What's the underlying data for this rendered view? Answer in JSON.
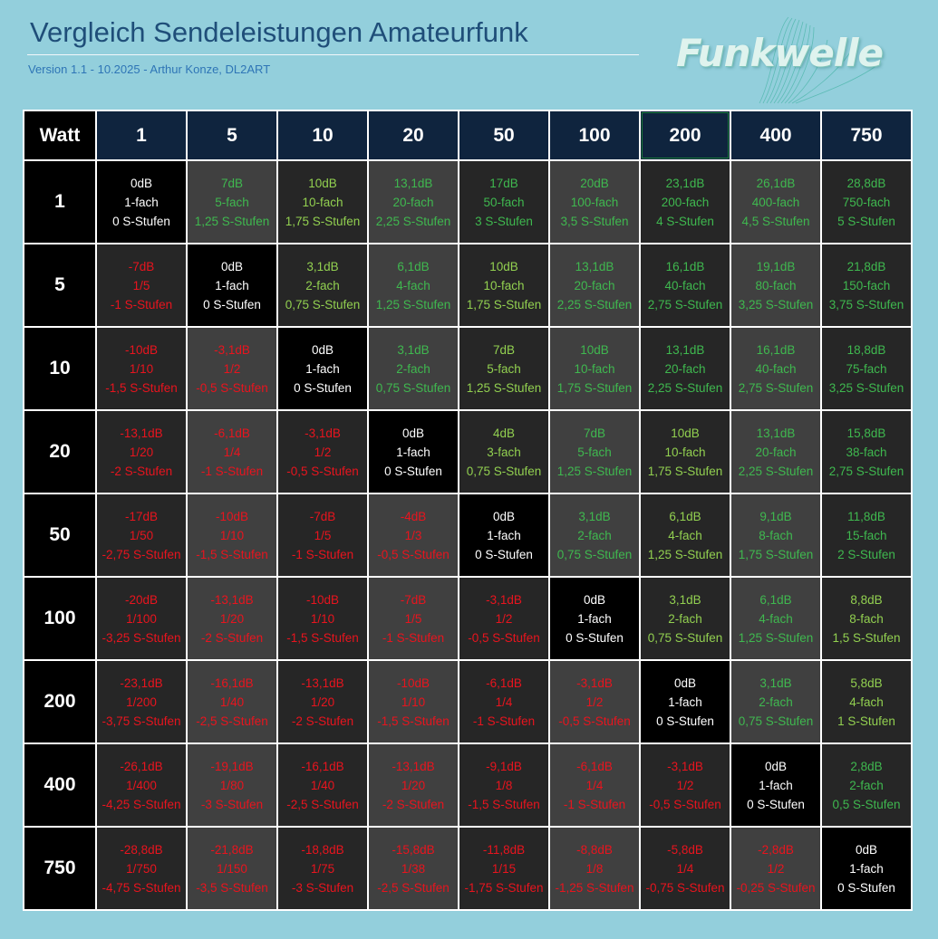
{
  "header": {
    "title": "Vergleich Sendeleistungen Amateurfunk",
    "subtitle": "Version 1.1 - 10.2025 - Arthur Konze, DL2ART",
    "logo_text": "Funkwelle"
  },
  "table": {
    "corner_label": "Watt",
    "columns": [
      "1",
      "5",
      "10",
      "20",
      "50",
      "100",
      "200",
      "400",
      "750"
    ],
    "rows": [
      {
        "label": "1",
        "cells": [
          {
            "db": "0dB",
            "factor": "1-fach",
            "s": "0 S-Stufen",
            "kind": "diag",
            "shade": "black"
          },
          {
            "db": "7dB",
            "factor": "5-fach",
            "s": "1,25 S-Stufen",
            "kind": "pos",
            "shade": "light"
          },
          {
            "db": "10dB",
            "factor": "10-fach",
            "s": "1,75 S-Stufen",
            "kind": "pos",
            "shade": "dark"
          },
          {
            "db": "13,1dB",
            "factor": "20-fach",
            "s": "2,25 S-Stufen",
            "kind": "pos",
            "shade": "light"
          },
          {
            "db": "17dB",
            "factor": "50-fach",
            "s": "3 S-Stufen",
            "kind": "pos",
            "shade": "dark"
          },
          {
            "db": "20dB",
            "factor": "100-fach",
            "s": "3,5 S-Stufen",
            "kind": "pos",
            "shade": "light"
          },
          {
            "db": "23,1dB",
            "factor": "200-fach",
            "s": "4 S-Stufen",
            "kind": "pos",
            "shade": "dark"
          },
          {
            "db": "26,1dB",
            "factor": "400-fach",
            "s": "4,5 S-Stufen",
            "kind": "pos",
            "shade": "light"
          },
          {
            "db": "28,8dB",
            "factor": "750-fach",
            "s": "5 S-Stufen",
            "kind": "pos",
            "shade": "dark"
          }
        ]
      },
      {
        "label": "5",
        "cells": [
          {
            "db": "-7dB",
            "factor": "1/5",
            "s": "-1 S-Stufen",
            "kind": "neg",
            "shade": "dark"
          },
          {
            "db": "0dB",
            "factor": "1-fach",
            "s": "0 S-Stufen",
            "kind": "diag",
            "shade": "black"
          },
          {
            "db": "3,1dB",
            "factor": "2-fach",
            "s": "0,75 S-Stufen",
            "kind": "pos",
            "shade": "dark"
          },
          {
            "db": "6,1dB",
            "factor": "4-fach",
            "s": "1,25 S-Stufen",
            "kind": "pos",
            "shade": "light"
          },
          {
            "db": "10dB",
            "factor": "10-fach",
            "s": "1,75 S-Stufen",
            "kind": "pos",
            "shade": "dark"
          },
          {
            "db": "13,1dB",
            "factor": "20-fach",
            "s": "2,25 S-Stufen",
            "kind": "pos",
            "shade": "light"
          },
          {
            "db": "16,1dB",
            "factor": "40-fach",
            "s": "2,75 S-Stufen",
            "kind": "pos",
            "shade": "dark"
          },
          {
            "db": "19,1dB",
            "factor": "80-fach",
            "s": "3,25 S-Stufen",
            "kind": "pos",
            "shade": "light"
          },
          {
            "db": "21,8dB",
            "factor": "150-fach",
            "s": "3,75 S-Stufen",
            "kind": "pos",
            "shade": "dark"
          }
        ]
      },
      {
        "label": "10",
        "cells": [
          {
            "db": "-10dB",
            "factor": "1/10",
            "s": "-1,5 S-Stufen",
            "kind": "neg",
            "shade": "dark"
          },
          {
            "db": "-3,1dB",
            "factor": "1/2",
            "s": "-0,5 S-Stufen",
            "kind": "neg",
            "shade": "light"
          },
          {
            "db": "0dB",
            "factor": "1-fach",
            "s": "0 S-Stufen",
            "kind": "diag",
            "shade": "black"
          },
          {
            "db": "3,1dB",
            "factor": "2-fach",
            "s": "0,75 S-Stufen",
            "kind": "pos",
            "shade": "light"
          },
          {
            "db": "7dB",
            "factor": "5-fach",
            "s": "1,25 S-Stufen",
            "kind": "pos",
            "shade": "dark"
          },
          {
            "db": "10dB",
            "factor": "10-fach",
            "s": "1,75 S-Stufen",
            "kind": "pos",
            "shade": "light"
          },
          {
            "db": "13,1dB",
            "factor": "20-fach",
            "s": "2,25 S-Stufen",
            "kind": "pos",
            "shade": "dark"
          },
          {
            "db": "16,1dB",
            "factor": "40-fach",
            "s": "2,75 S-Stufen",
            "kind": "pos",
            "shade": "light"
          },
          {
            "db": "18,8dB",
            "factor": "75-fach",
            "s": "3,25 S-Stufen",
            "kind": "pos",
            "shade": "dark"
          }
        ]
      },
      {
        "label": "20",
        "cells": [
          {
            "db": "-13,1dB",
            "factor": "1/20",
            "s": "-2 S-Stufen",
            "kind": "neg",
            "shade": "dark"
          },
          {
            "db": "-6,1dB",
            "factor": "1/4",
            "s": "-1 S-Stufen",
            "kind": "neg",
            "shade": "light"
          },
          {
            "db": "-3,1dB",
            "factor": "1/2",
            "s": "-0,5 S-Stufen",
            "kind": "neg",
            "shade": "dark"
          },
          {
            "db": "0dB",
            "factor": "1-fach",
            "s": "0 S-Stufen",
            "kind": "diag",
            "shade": "black"
          },
          {
            "db": "4dB",
            "factor": "3-fach",
            "s": "0,75 S-Stufen",
            "kind": "pos",
            "shade": "dark"
          },
          {
            "db": "7dB",
            "factor": "5-fach",
            "s": "1,25 S-Stufen",
            "kind": "pos",
            "shade": "light"
          },
          {
            "db": "10dB",
            "factor": "10-fach",
            "s": "1,75 S-Stufen",
            "kind": "pos",
            "shade": "dark"
          },
          {
            "db": "13,1dB",
            "factor": "20-fach",
            "s": "2,25 S-Stufen",
            "kind": "pos",
            "shade": "light"
          },
          {
            "db": "15,8dB",
            "factor": "38-fach",
            "s": "2,75 S-Stufen",
            "kind": "pos",
            "shade": "dark"
          }
        ]
      },
      {
        "label": "50",
        "cells": [
          {
            "db": "-17dB",
            "factor": "1/50",
            "s": "-2,75 S-Stufen",
            "kind": "neg",
            "shade": "dark"
          },
          {
            "db": "-10dB",
            "factor": "1/10",
            "s": "-1,5 S-Stufen",
            "kind": "neg",
            "shade": "light"
          },
          {
            "db": "-7dB",
            "factor": "1/5",
            "s": "-1 S-Stufen",
            "kind": "neg",
            "shade": "dark"
          },
          {
            "db": "-4dB",
            "factor": "1/3",
            "s": "-0,5 S-Stufen",
            "kind": "neg",
            "shade": "light"
          },
          {
            "db": "0dB",
            "factor": "1-fach",
            "s": "0 S-Stufen",
            "kind": "diag",
            "shade": "black"
          },
          {
            "db": "3,1dB",
            "factor": "2-fach",
            "s": "0,75 S-Stufen",
            "kind": "pos",
            "shade": "light"
          },
          {
            "db": "6,1dB",
            "factor": "4-fach",
            "s": "1,25 S-Stufen",
            "kind": "pos",
            "shade": "dark"
          },
          {
            "db": "9,1dB",
            "factor": "8-fach",
            "s": "1,75 S-Stufen",
            "kind": "pos",
            "shade": "light"
          },
          {
            "db": "11,8dB",
            "factor": "15-fach",
            "s": "2 S-Stufen",
            "kind": "pos",
            "shade": "dark"
          }
        ]
      },
      {
        "label": "100",
        "cells": [
          {
            "db": "-20dB",
            "factor": "1/100",
            "s": "-3,25 S-Stufen",
            "kind": "neg",
            "shade": "dark"
          },
          {
            "db": "-13,1dB",
            "factor": "1/20",
            "s": "-2 S-Stufen",
            "kind": "neg",
            "shade": "light"
          },
          {
            "db": "-10dB",
            "factor": "1/10",
            "s": "-1,5 S-Stufen",
            "kind": "neg",
            "shade": "dark"
          },
          {
            "db": "-7dB",
            "factor": "1/5",
            "s": "-1 S-Stufen",
            "kind": "neg",
            "shade": "light"
          },
          {
            "db": "-3,1dB",
            "factor": "1/2",
            "s": "-0,5 S-Stufen",
            "kind": "neg",
            "shade": "dark"
          },
          {
            "db": "0dB",
            "factor": "1-fach",
            "s": "0 S-Stufen",
            "kind": "diag",
            "shade": "black"
          },
          {
            "db": "3,1dB",
            "factor": "2-fach",
            "s": "0,75 S-Stufen",
            "kind": "pos",
            "shade": "dark"
          },
          {
            "db": "6,1dB",
            "factor": "4-fach",
            "s": "1,25 S-Stufen",
            "kind": "pos",
            "shade": "light"
          },
          {
            "db": "8,8dB",
            "factor": "8-fach",
            "s": "1,5 S-Stufen",
            "kind": "pos",
            "shade": "dark"
          }
        ]
      },
      {
        "label": "200",
        "cells": [
          {
            "db": "-23,1dB",
            "factor": "1/200",
            "s": "-3,75 S-Stufen",
            "kind": "neg",
            "shade": "dark"
          },
          {
            "db": "-16,1dB",
            "factor": "1/40",
            "s": "-2,5 S-Stufen",
            "kind": "neg",
            "shade": "light"
          },
          {
            "db": "-13,1dB",
            "factor": "1/20",
            "s": "-2 S-Stufen",
            "kind": "neg",
            "shade": "dark"
          },
          {
            "db": "-10dB",
            "factor": "1/10",
            "s": "-1,5 S-Stufen",
            "kind": "neg",
            "shade": "light"
          },
          {
            "db": "-6,1dB",
            "factor": "1/4",
            "s": "-1 S-Stufen",
            "kind": "neg",
            "shade": "dark"
          },
          {
            "db": "-3,1dB",
            "factor": "1/2",
            "s": "-0,5 S-Stufen",
            "kind": "neg",
            "shade": "light"
          },
          {
            "db": "0dB",
            "factor": "1-fach",
            "s": "0 S-Stufen",
            "kind": "diag",
            "shade": "black"
          },
          {
            "db": "3,1dB",
            "factor": "2-fach",
            "s": "0,75 S-Stufen",
            "kind": "pos",
            "shade": "light"
          },
          {
            "db": "5,8dB",
            "factor": "4-fach",
            "s": "1 S-Stufen",
            "kind": "pos",
            "shade": "dark"
          }
        ]
      },
      {
        "label": "400",
        "cells": [
          {
            "db": "-26,1dB",
            "factor": "1/400",
            "s": "-4,25 S-Stufen",
            "kind": "neg",
            "shade": "dark"
          },
          {
            "db": "-19,1dB",
            "factor": "1/80",
            "s": "-3 S-Stufen",
            "kind": "neg",
            "shade": "light"
          },
          {
            "db": "-16,1dB",
            "factor": "1/40",
            "s": "-2,5 S-Stufen",
            "kind": "neg",
            "shade": "dark"
          },
          {
            "db": "-13,1dB",
            "factor": "1/20",
            "s": "-2 S-Stufen",
            "kind": "neg",
            "shade": "light"
          },
          {
            "db": "-9,1dB",
            "factor": "1/8",
            "s": "-1,5 S-Stufen",
            "kind": "neg",
            "shade": "dark"
          },
          {
            "db": "-6,1dB",
            "factor": "1/4",
            "s": "-1 S-Stufen",
            "kind": "neg",
            "shade": "light"
          },
          {
            "db": "-3,1dB",
            "factor": "1/2",
            "s": "-0,5 S-Stufen",
            "kind": "neg",
            "shade": "dark"
          },
          {
            "db": "0dB",
            "factor": "1-fach",
            "s": "0 S-Stufen",
            "kind": "diag",
            "shade": "black"
          },
          {
            "db": "2,8dB",
            "factor": "2-fach",
            "s": "0,5 S-Stufen",
            "kind": "pos",
            "shade": "dark"
          }
        ]
      },
      {
        "label": "750",
        "cells": [
          {
            "db": "-28,8dB",
            "factor": "1/750",
            "s": "-4,75 S-Stufen",
            "kind": "neg",
            "shade": "dark"
          },
          {
            "db": "-21,8dB",
            "factor": "1/150",
            "s": "-3,5 S-Stufen",
            "kind": "neg",
            "shade": "light"
          },
          {
            "db": "-18,8dB",
            "factor": "1/75",
            "s": "-3 S-Stufen",
            "kind": "neg",
            "shade": "dark"
          },
          {
            "db": "-15,8dB",
            "factor": "1/38",
            "s": "-2,5 S-Stufen",
            "kind": "neg",
            "shade": "light"
          },
          {
            "db": "-11,8dB",
            "factor": "1/15",
            "s": "-1,75 S-Stufen",
            "kind": "neg",
            "shade": "dark"
          },
          {
            "db": "-8,8dB",
            "factor": "1/8",
            "s": "-1,25 S-Stufen",
            "kind": "neg",
            "shade": "light"
          },
          {
            "db": "-5,8dB",
            "factor": "1/4",
            "s": "-0,75 S-Stufen",
            "kind": "neg",
            "shade": "dark"
          },
          {
            "db": "-2,8dB",
            "factor": "1/2",
            "s": "-0,25 S-Stufen",
            "kind": "neg",
            "shade": "light"
          },
          {
            "db": "0dB",
            "factor": "1-fach",
            "s": "0 S-Stufen",
            "kind": "diag",
            "shade": "black"
          }
        ]
      }
    ]
  },
  "colors": {
    "page_background": "#93cfdc",
    "title": "#1f4e79",
    "subtitle": "#2e75b6",
    "column_header_bg": "#0f243e",
    "row_header_bg": "#000000",
    "cell_dark": "#262626",
    "cell_light": "#404040",
    "cell_diag": "#000000",
    "text_positive": "#3fb84f",
    "text_positive_yellowish": "#92d050",
    "text_negative": "#e8141e",
    "text_diag": "#ffffff"
  }
}
